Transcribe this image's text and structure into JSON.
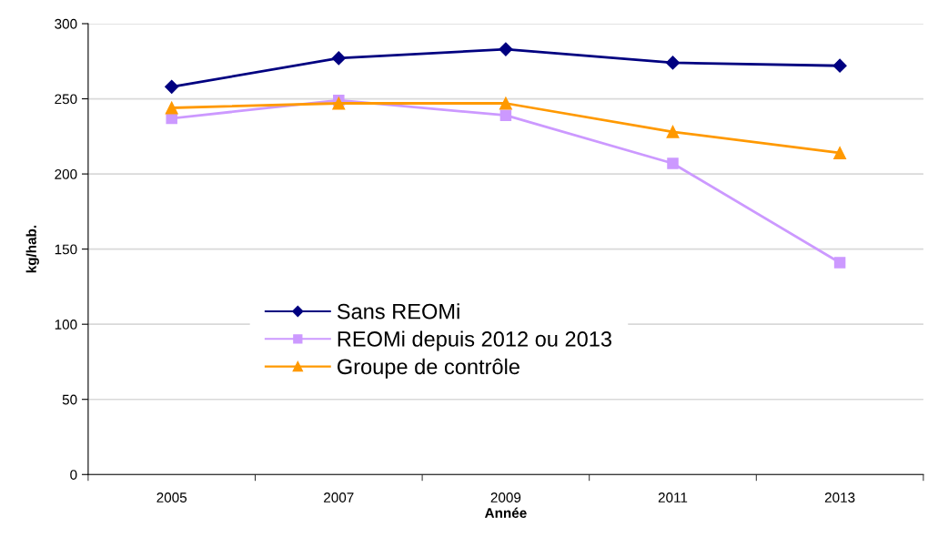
{
  "chart_data": {
    "type": "line",
    "xlabel": "Année",
    "ylabel": "kg/hab.",
    "categories": [
      "2005",
      "2007",
      "2009",
      "2011",
      "2013"
    ],
    "series": [
      {
        "name": "Sans REOMi",
        "color": "#000080",
        "marker": "diamond",
        "values": [
          258,
          277,
          283,
          274,
          272
        ]
      },
      {
        "name": "REOMi depuis 2012 ou 2013",
        "color": "#cc99ff",
        "marker": "square",
        "values": [
          237,
          249,
          239,
          207,
          141
        ]
      },
      {
        "name": "Groupe de contrôle",
        "color": "#ff9900",
        "marker": "triangle",
        "values": [
          244,
          247,
          247,
          228,
          214
        ]
      }
    ],
    "ylim": [
      0,
      300
    ],
    "yticks": [
      0,
      50,
      100,
      150,
      200,
      250,
      300
    ],
    "grid": "y",
    "legend": "lower center",
    "line_style": "solid"
  }
}
